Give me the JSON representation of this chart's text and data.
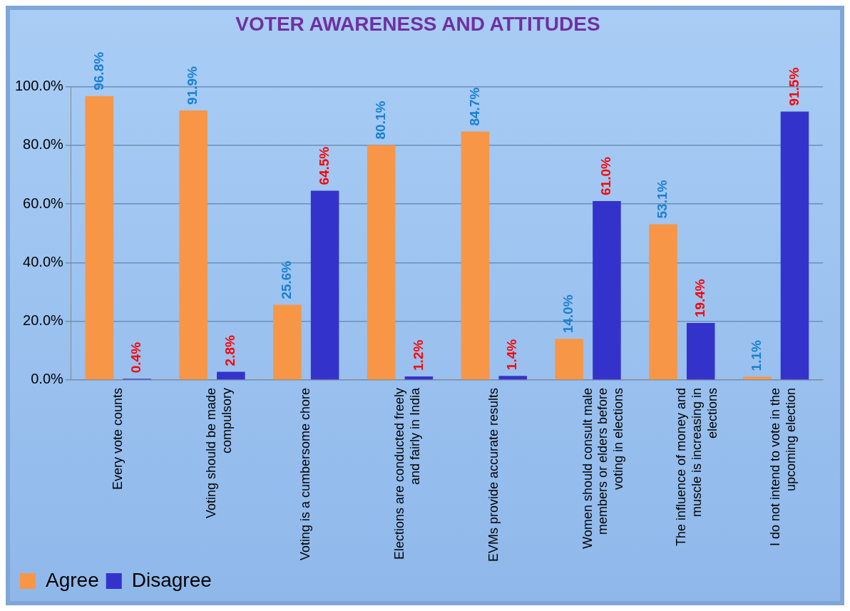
{
  "chart_data": {
    "type": "bar",
    "title": "VOTER AWARENESS AND ATTITUDES",
    "categories": [
      "Every vote counts",
      "Voting should be made compulsory",
      "Voting is a cumbersome chore",
      "Elections are conducted freely and fairly in India",
      "EVMs provide accurate results",
      "Women should consult male members or elders before voting in elections",
      "The influence of money and muscle is increasing in elections",
      "I do not intend to vote in the upcoming election"
    ],
    "series": [
      {
        "name": "Agree",
        "color": "#f79646",
        "values": [
          96.8,
          91.9,
          25.6,
          80.1,
          84.7,
          14.0,
          53.1,
          1.1
        ],
        "value_labels": [
          "96.8%",
          "91.9%",
          "25.6%",
          "80.1%",
          "84.7%",
          "14.0%",
          "53.1%",
          "1.1%"
        ]
      },
      {
        "name": "Disagree",
        "color": "#3333cc",
        "values": [
          0.4,
          2.8,
          64.5,
          1.2,
          1.4,
          61.0,
          19.4,
          91.5
        ],
        "value_labels": [
          "0.4%",
          "2.8%",
          "64.5%",
          "1.2%",
          "1.4%",
          "61.0%",
          "19.4%",
          "91.5%"
        ]
      }
    ],
    "ylim": [
      0,
      100
    ],
    "yticks": [
      {
        "value": 0,
        "label": "0.0%"
      },
      {
        "value": 20,
        "label": "20.0%"
      },
      {
        "value": 40,
        "label": "40.0%"
      },
      {
        "value": 60,
        "label": "60.0%"
      },
      {
        "value": 80,
        "label": "80.0%"
      },
      {
        "value": 100,
        "label": "100.0%"
      }
    ],
    "grid": "y",
    "legend": "bottom left"
  }
}
